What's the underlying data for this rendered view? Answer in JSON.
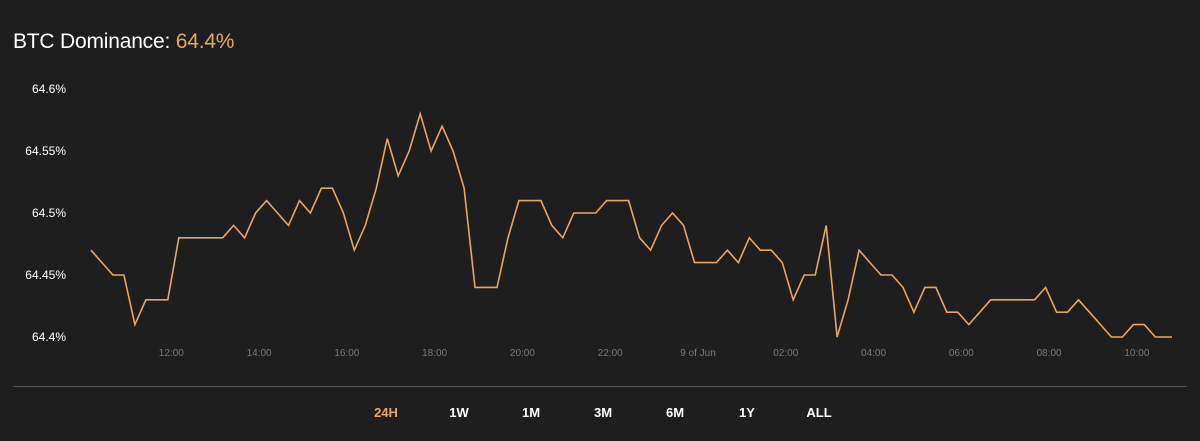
{
  "header": {
    "label": "BTC Dominance:",
    "value": "64.4%"
  },
  "colors": {
    "background": "#1e1e1e",
    "line": "#e8a55f",
    "axis_text": "#ffffff",
    "x_tick_text": "#7a7a7a",
    "baseline": "#555555"
  },
  "tabs": [
    {
      "label": "24H",
      "active": true
    },
    {
      "label": "1W",
      "active": false
    },
    {
      "label": "1M",
      "active": false
    },
    {
      "label": "3M",
      "active": false
    },
    {
      "label": "6M",
      "active": false
    },
    {
      "label": "1Y",
      "active": false
    },
    {
      "label": "ALL",
      "active": false
    }
  ],
  "chart_data": {
    "type": "line",
    "title": "",
    "xlabel": "",
    "ylabel": "",
    "grid": false,
    "ylim": [
      64.4,
      64.6
    ],
    "y_ticks": [
      64.4,
      64.45,
      64.5,
      64.55,
      64.6
    ],
    "y_tick_labels": [
      "64.4%",
      "64.45%",
      "64.5%",
      "64.55%",
      "64.6%"
    ],
    "xlim": [
      10.17,
      34.8
    ],
    "x_ticks": [
      12,
      14,
      16,
      18,
      20,
      22,
      24,
      26,
      28,
      30,
      32,
      34
    ],
    "x_tick_labels": [
      "12:00",
      "14:00",
      "16:00",
      "18:00",
      "20:00",
      "22:00",
      "9 of Jun",
      "02:00",
      "04:00",
      "06:00",
      "08:00",
      "10:00"
    ],
    "x": [
      10.17,
      10.67,
      10.92,
      11.17,
      11.42,
      11.67,
      11.92,
      12.17,
      12.42,
      12.67,
      12.92,
      13.17,
      13.42,
      13.67,
      13.92,
      14.17,
      14.42,
      14.67,
      14.92,
      15.17,
      15.42,
      15.67,
      15.92,
      16.17,
      16.42,
      16.67,
      16.92,
      17.17,
      17.42,
      17.67,
      17.92,
      18.17,
      18.42,
      18.67,
      18.92,
      19.17,
      19.42,
      19.67,
      19.92,
      20.17,
      20.42,
      20.67,
      20.92,
      21.17,
      21.42,
      21.67,
      21.92,
      22.17,
      22.42,
      22.67,
      22.92,
      23.17,
      23.42,
      23.67,
      23.92,
      24.17,
      24.42,
      24.67,
      24.92,
      25.17,
      25.42,
      25.67,
      25.92,
      26.17,
      26.42,
      26.67,
      26.92,
      27.17,
      27.42,
      27.67,
      27.92,
      28.17,
      28.42,
      28.67,
      28.92,
      29.17,
      29.42,
      29.67,
      29.92,
      30.17,
      30.42,
      30.67,
      30.92,
      31.17,
      31.42,
      31.67,
      31.92,
      32.17,
      32.42,
      32.67,
      32.92,
      33.17,
      33.42,
      33.67,
      33.92,
      34.17,
      34.42,
      34.67,
      34.8
    ],
    "series": [
      {
        "values": [
          64.47,
          64.45,
          64.45,
          64.41,
          64.43,
          64.43,
          64.43,
          64.48,
          64.48,
          64.48,
          64.48,
          64.48,
          64.49,
          64.48,
          64.5,
          64.51,
          64.5,
          64.49,
          64.51,
          64.5,
          64.52,
          64.52,
          64.5,
          64.47,
          64.49,
          64.52,
          64.56,
          64.53,
          64.55,
          64.58,
          64.55,
          64.57,
          64.55,
          64.52,
          64.44,
          64.44,
          64.44,
          64.48,
          64.51,
          64.51,
          64.51,
          64.49,
          64.48,
          64.5,
          64.5,
          64.5,
          64.51,
          64.51,
          64.51,
          64.48,
          64.47,
          64.49,
          64.5,
          64.49,
          64.46,
          64.46,
          64.46,
          64.47,
          64.46,
          64.48,
          64.47,
          64.47,
          64.46,
          64.43,
          64.45,
          64.45,
          64.49,
          64.4,
          64.43,
          64.47,
          64.46,
          64.45,
          64.45,
          64.44,
          64.42,
          64.44,
          64.44,
          64.42,
          64.42,
          64.41,
          64.42,
          64.43,
          64.43,
          64.43,
          64.43,
          64.43,
          64.44,
          64.42,
          64.42,
          64.43,
          64.42,
          64.41,
          64.4,
          64.4,
          64.41,
          64.41,
          64.4,
          64.4,
          64.4
        ]
      }
    ]
  }
}
